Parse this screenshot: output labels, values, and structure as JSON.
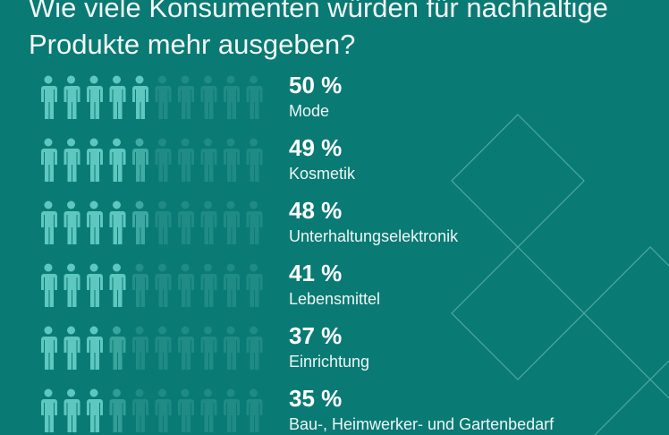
{
  "title": "Wie viele Konsumenten würden für nachhaltige Produkte mehr ausgeben?",
  "colors": {
    "background": "#0a7a74",
    "icon_filled": "#5ec8c0",
    "icon_empty": "#1f8b84",
    "decor_lines": "#5fb5ad"
  },
  "chart_data": {
    "type": "pictogram",
    "title": "Wie viele Konsumenten würden für nachhaltige Produkte mehr ausgeben?",
    "icon": "person-icon",
    "icons_per_row": 10,
    "categories": [
      "Mode",
      "Kosmetik",
      "Unterhaltungselektronik",
      "Lebensmittel",
      "Einrichtung",
      "Bau-, Heimwerker- und Gartenbedarf"
    ],
    "values": [
      50,
      49,
      48,
      41,
      37,
      35
    ],
    "value_labels": [
      "50 %",
      "49 %",
      "48 %",
      "41 %",
      "37 %",
      "35 %"
    ]
  }
}
